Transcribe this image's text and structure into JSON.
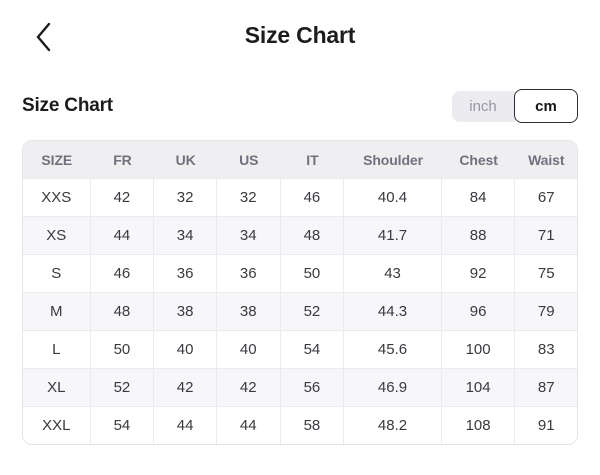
{
  "header": {
    "title": "Size Chart",
    "back_icon": "chevron-left"
  },
  "section": {
    "title": "Size Chart",
    "units": [
      {
        "label": "inch",
        "selected": false
      },
      {
        "label": "cm",
        "selected": true
      }
    ]
  },
  "table": {
    "columns": [
      "SIZE",
      "FR",
      "UK",
      "US",
      "IT",
      "Shoulder",
      "Chest",
      "Waist"
    ],
    "rows": [
      [
        "XXS",
        "42",
        "32",
        "32",
        "46",
        "40.4",
        "84",
        "67"
      ],
      [
        "XS",
        "44",
        "34",
        "34",
        "48",
        "41.7",
        "88",
        "71"
      ],
      [
        "S",
        "46",
        "36",
        "36",
        "50",
        "43",
        "92",
        "75"
      ],
      [
        "M",
        "48",
        "38",
        "38",
        "52",
        "44.3",
        "96",
        "79"
      ],
      [
        "L",
        "50",
        "40",
        "40",
        "54",
        "45.6",
        "100",
        "83"
      ],
      [
        "XL",
        "52",
        "42",
        "42",
        "56",
        "46.9",
        "104",
        "87"
      ],
      [
        "XXL",
        "54",
        "44",
        "44",
        "58",
        "48.2",
        "108",
        "91"
      ]
    ]
  },
  "colors": {
    "background": "#ffffff",
    "title_text": "#1c1c1e",
    "table_header_bg": "#efeff2",
    "table_header_text": "#71717d",
    "table_body_text": "#39393f",
    "table_alt_row_bg": "#f7f7f9",
    "table_border": "#e4e4e9",
    "table_separator": "#ebebee",
    "unit_inactive_bg": "#ebebf0",
    "unit_inactive_text": "#9797a3",
    "unit_active_border": "#2d2d33",
    "unit_active_text": "#141416"
  }
}
